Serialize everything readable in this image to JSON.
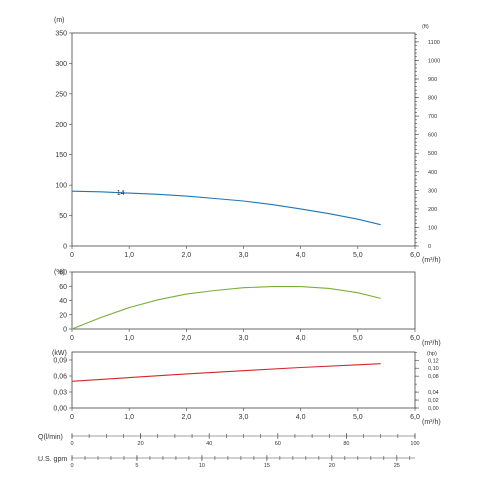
{
  "chart_data": [
    {
      "type": "line",
      "title": "",
      "xlabel": "(m³/h)",
      "ylabel": "(m)",
      "y2label": "(ft)",
      "xlim": [
        0,
        6
      ],
      "ylim": [
        0,
        350
      ],
      "y2lim": [
        0,
        1148
      ],
      "x_ticks": [
        "0",
        "1,0",
        "2,0",
        "3,0",
        "4,0",
        "5,0",
        "6,0"
      ],
      "y_ticks": [
        "0",
        "50",
        "100",
        "150",
        "200",
        "250",
        "300",
        "350"
      ],
      "y2_ticks": [
        "0",
        "100",
        "200",
        "300",
        "400",
        "500",
        "600",
        "700",
        "800",
        "900",
        "1000",
        "1100"
      ],
      "series": [
        {
          "name": "14",
          "color": "#1f77b4",
          "x": [
            0,
            0.5,
            1.0,
            1.5,
            2.0,
            2.5,
            3.0,
            3.5,
            4.0,
            4.5,
            5.0,
            5.4
          ],
          "y": [
            90,
            89,
            87,
            85,
            82,
            78,
            74,
            68,
            61,
            53,
            44,
            35
          ]
        }
      ]
    },
    {
      "type": "line",
      "title": "",
      "xlabel": "(m³/h)",
      "ylabel": "(%)",
      "xlim": [
        0,
        6
      ],
      "ylim": [
        0,
        80
      ],
      "x_ticks": [
        "0",
        "1,0",
        "2,0",
        "3,0",
        "4,0",
        "5,0",
        "6,0"
      ],
      "y_ticks": [
        "0",
        "20",
        "40",
        "60",
        "80"
      ],
      "series": [
        {
          "color": "#7ab03a",
          "x": [
            0,
            0.5,
            1.0,
            1.5,
            2.0,
            2.5,
            3.0,
            3.5,
            4.0,
            4.5,
            5.0,
            5.4
          ],
          "y": [
            0,
            16,
            30,
            41,
            49,
            54,
            58,
            59.5,
            59.5,
            57,
            51,
            43
          ]
        }
      ]
    },
    {
      "type": "line",
      "title": "",
      "xlabel": "(m³/h)",
      "ylabel": "(kW)",
      "y2label": "(hp)",
      "xlim": [
        0,
        6
      ],
      "ylim": [
        0,
        0.105
      ],
      "y2lim": [
        0,
        0.1408
      ],
      "x_ticks": [
        "0",
        "1,0",
        "2,0",
        "3,0",
        "4,0",
        "5,0",
        "6,0"
      ],
      "y_ticks": [
        "0,00",
        "0,03",
        "0,06",
        "0,09"
      ],
      "y2_ticks": [
        "0,00",
        "0,02",
        "0,04",
        "0,08",
        "0,10",
        "0,12"
      ],
      "series": [
        {
          "color": "#d62728",
          "x": [
            0,
            1.0,
            2.0,
            3.0,
            4.0,
            5.0,
            5.4
          ],
          "y": [
            0.05,
            0.057,
            0.064,
            0.07,
            0.076,
            0.081,
            0.083
          ]
        }
      ]
    }
  ],
  "flow_scales": [
    {
      "label": "Q(l/min)",
      "max": 100,
      "labels": [
        "0",
        "20",
        "40",
        "60",
        "80",
        "100"
      ]
    },
    {
      "label": "U.S. gpm",
      "max": 26.4,
      "labels": [
        "0",
        "5",
        "10",
        "15",
        "20",
        "25"
      ]
    }
  ]
}
